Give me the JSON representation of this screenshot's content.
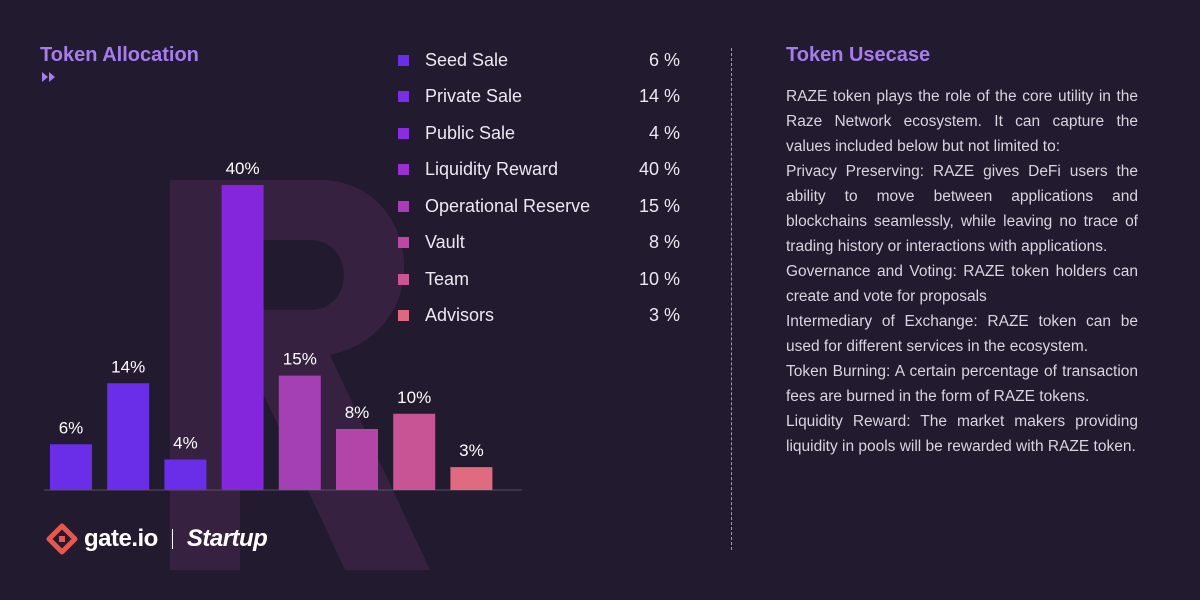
{
  "header": {
    "allocation_title": "Token Allocation",
    "usecase_title": "Token Usecase"
  },
  "chart_data": {
    "type": "bar",
    "title": "Token Allocation",
    "categories": [
      "Seed Sale",
      "Private Sale",
      "Public Sale",
      "Liquidity Reward",
      "Operational Reserve",
      "Vault",
      "Team",
      "Advisors"
    ],
    "values": [
      6,
      14,
      4,
      40,
      15,
      8,
      10,
      3
    ],
    "data_labels": [
      "6%",
      "14%",
      "4%",
      "40%",
      "15%",
      "8%",
      "10%",
      "3%"
    ],
    "colors": [
      "#6a2ee9",
      "#6a2ee9",
      "#6a2ee9",
      "#8326dc",
      "#a53fb4",
      "#b445a8",
      "#c95495",
      "#e06a7f"
    ],
    "ylim": [
      0,
      40
    ],
    "grid": false,
    "legend_position": "right"
  },
  "legend": [
    {
      "label": "Seed Sale",
      "value": "6 %",
      "color": "#6a2ee9"
    },
    {
      "label": "Private Sale",
      "value": "14 %",
      "color": "#7a2ee6"
    },
    {
      "label": "Public Sale",
      "value": "4 %",
      "color": "#8a2de0"
    },
    {
      "label": "Liquidity Reward",
      "value": "40 %",
      "color": "#9a30cf"
    },
    {
      "label": "Operational Reserve",
      "value": "15 %",
      "color": "#ab3cb8"
    },
    {
      "label": "Vault",
      "value": "8 %",
      "color": "#bd46a6"
    },
    {
      "label": "Team",
      "value": "10 %",
      "color": "#cb5494"
    },
    {
      "label": "Advisors",
      "value": "3 %",
      "color": "#dd6880"
    }
  ],
  "usecase": {
    "paragraphs": [
      "RAZE token plays the role of the core utility in the Raze Network ecosystem. It can capture the values included below but not limited to:",
      "Privacy Preserving:  RAZE gives DeFi users the ability to move between applications and blockchains seamlessly, while leaving no trace of trading history or interactions with applica­tions.",
      "Governance and Voting: RAZE token holders can create and vote for proposals",
      "Intermediary of Exchange: RAZE token can be used for different services in the ecosystem.",
      "Token Burning: A certain percentage of trans­action fees are burned in the form of RAZE tokens.",
      "Liquidity Reward: The market makers providing liquidity in pools will be rewarded with RAZE token."
    ]
  },
  "brand": {
    "exchange": "gate.io",
    "program": "Startup"
  },
  "icons": {
    "title_icon": "fast-forward-icon",
    "logo_icon": "gate-logo-icon",
    "watermark": "raze-logo-watermark"
  }
}
